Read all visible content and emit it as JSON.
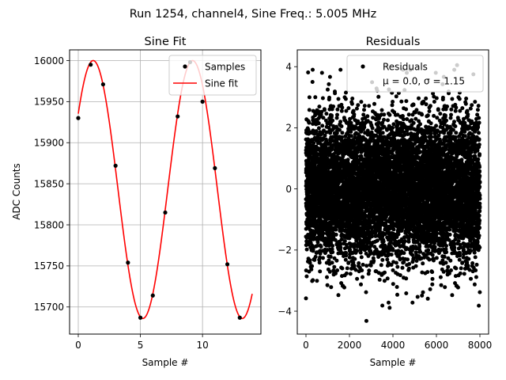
{
  "suptitle": "Run 1254, channel4, Sine Freq.: 5.005 MHz",
  "chart_data": [
    {
      "type": "line",
      "title": "Sine Fit",
      "xlabel": "Sample #",
      "ylabel": "ADC Counts",
      "xlim": [
        -0.7,
        14.7
      ],
      "ylim": [
        15667,
        16013
      ],
      "xticks": [
        0,
        5,
        10
      ],
      "xtick_labels": [
        "0",
        "5",
        "10"
      ],
      "yticks": [
        15700,
        15750,
        15800,
        15850,
        15900,
        15950,
        16000
      ],
      "ytick_labels": [
        "15700",
        "15750",
        "15800",
        "15850",
        "15900",
        "15950",
        "16000"
      ],
      "grid": true,
      "legend": "top-right",
      "series": [
        {
          "name": "Samples",
          "kind": "scatter",
          "color": "#000000",
          "x": [
            0,
            1,
            2,
            3,
            4,
            5,
            6,
            7,
            8,
            9,
            10,
            11,
            12,
            13
          ],
          "y": [
            15930,
            15995,
            15971,
            15872,
            15754,
            15687,
            15714,
            15815,
            15932,
            15998,
            15950,
            15869,
            15752,
            15687
          ]
        },
        {
          "name": "Sine fit",
          "kind": "line",
          "color": "#ff0000",
          "offset": 15843,
          "amplitude": 157,
          "period": 8,
          "phase": 1.2,
          "x_range": [
            0,
            14
          ]
        }
      ]
    },
    {
      "type": "scatter",
      "title": "Residuals",
      "xlabel": "Sample #",
      "ylabel": "",
      "xlim": [
        -400,
        8400
      ],
      "ylim": [
        -4.75,
        4.55
      ],
      "xticks": [
        0,
        2000,
        4000,
        6000,
        8000
      ],
      "xtick_labels": [
        "0",
        "2000",
        "4000",
        "6000",
        "8000"
      ],
      "yticks": [
        -4,
        -2,
        0,
        2,
        4
      ],
      "ytick_labels": [
        "−4",
        "−2",
        "0",
        "2",
        "4"
      ],
      "grid": false,
      "legend": "top-right",
      "legend_lines": [
        "Residuals",
        "μ = 0.0, σ = 1.15"
      ],
      "series": [
        {
          "name": "Residuals",
          "color": "#000000",
          "n_points": 8000,
          "mean": 0.0,
          "std": 1.15,
          "x_range": [
            0,
            7999
          ],
          "sample_points": [
            {
              "x": 2780,
              "y": -4.32
            },
            {
              "x": 0,
              "y": -3.58
            },
            {
              "x": 3800,
              "y": -3.72
            },
            {
              "x": 4900,
              "y": -3.72
            },
            {
              "x": 7950,
              "y": -3.82
            },
            {
              "x": 6950,
              "y": 4.05
            },
            {
              "x": 7700,
              "y": 3.75
            },
            {
              "x": 300,
              "y": 3.5
            },
            {
              "x": 1000,
              "y": 3.25
            }
          ]
        }
      ]
    }
  ]
}
